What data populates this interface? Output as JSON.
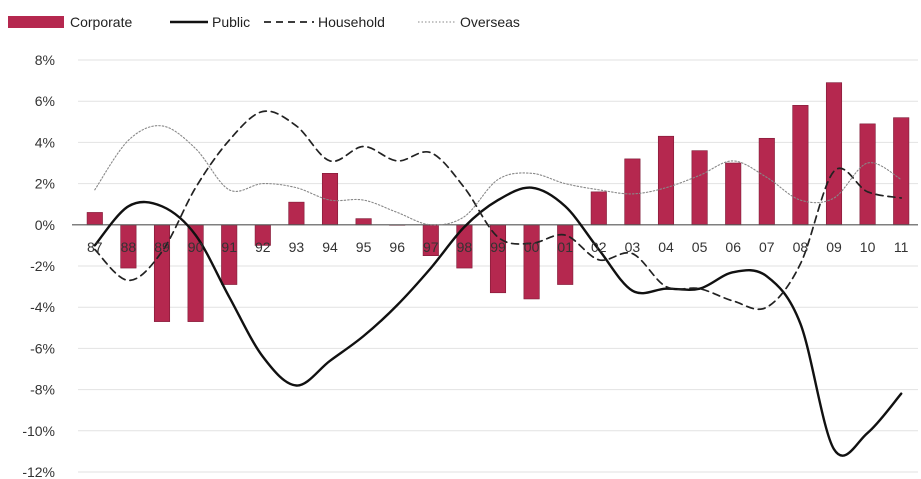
{
  "chart_data": {
    "type": "bar",
    "title": "",
    "xlabel": "",
    "ylabel": "",
    "categories": [
      "87",
      "88",
      "89",
      "90",
      "91",
      "92",
      "93",
      "94",
      "95",
      "96",
      "97",
      "98",
      "99",
      "00",
      "01",
      "02",
      "03",
      "04",
      "05",
      "06",
      "07",
      "08",
      "09",
      "10",
      "11"
    ],
    "ylim": [
      -12,
      8
    ],
    "yticks": [
      -12,
      -10,
      -8,
      -6,
      -4,
      -2,
      0,
      2,
      4,
      6,
      8
    ],
    "ytick_labels": [
      "-12%",
      "-10%",
      "-8%",
      "-6%",
      "-4%",
      "-2%",
      "0%",
      "2%",
      "4%",
      "6%",
      "8%"
    ],
    "grid": true,
    "legend_position": "top-left",
    "series": [
      {
        "name": "Corporate",
        "kind": "bar",
        "color": "#b5284f",
        "values": [
          0.6,
          -2.1,
          -4.7,
          -4.7,
          -2.9,
          -1.0,
          1.1,
          2.5,
          0.3,
          0.0,
          -1.5,
          -2.1,
          -3.3,
          -3.6,
          -2.9,
          1.6,
          3.2,
          4.3,
          3.6,
          3.0,
          4.2,
          5.8,
          6.9,
          4.9,
          5.2
        ]
      },
      {
        "name": "Public",
        "kind": "line",
        "style": "solid",
        "color": "#111111",
        "values": [
          -1.0,
          0.9,
          0.9,
          -0.5,
          -3.5,
          -6.4,
          -7.8,
          -6.6,
          -5.4,
          -3.9,
          -2.1,
          -0.1,
          1.2,
          1.8,
          0.9,
          -1.2,
          -3.2,
          -3.1,
          -3.1,
          -2.3,
          -2.5,
          -4.8,
          -10.9,
          -10.1,
          -8.2
        ]
      },
      {
        "name": "Household",
        "kind": "line",
        "style": "dashed",
        "color": "#222222",
        "values": [
          -1.2,
          -2.7,
          -1.3,
          1.8,
          4.1,
          5.5,
          4.8,
          3.1,
          3.8,
          3.1,
          3.5,
          1.8,
          -0.6,
          -0.9,
          -0.5,
          -1.7,
          -1.4,
          -3.0,
          -3.1,
          -3.7,
          -4.0,
          -1.9,
          2.6,
          1.6,
          1.3
        ]
      },
      {
        "name": "Overseas",
        "kind": "line",
        "style": "dotted",
        "color": "#888888",
        "values": [
          1.7,
          4.1,
          4.8,
          3.7,
          1.7,
          2.0,
          1.8,
          1.2,
          1.2,
          0.6,
          0.0,
          0.4,
          2.2,
          2.5,
          2.0,
          1.7,
          1.5,
          1.8,
          2.4,
          3.1,
          2.3,
          1.2,
          1.3,
          3.0,
          2.2
        ]
      }
    ]
  }
}
